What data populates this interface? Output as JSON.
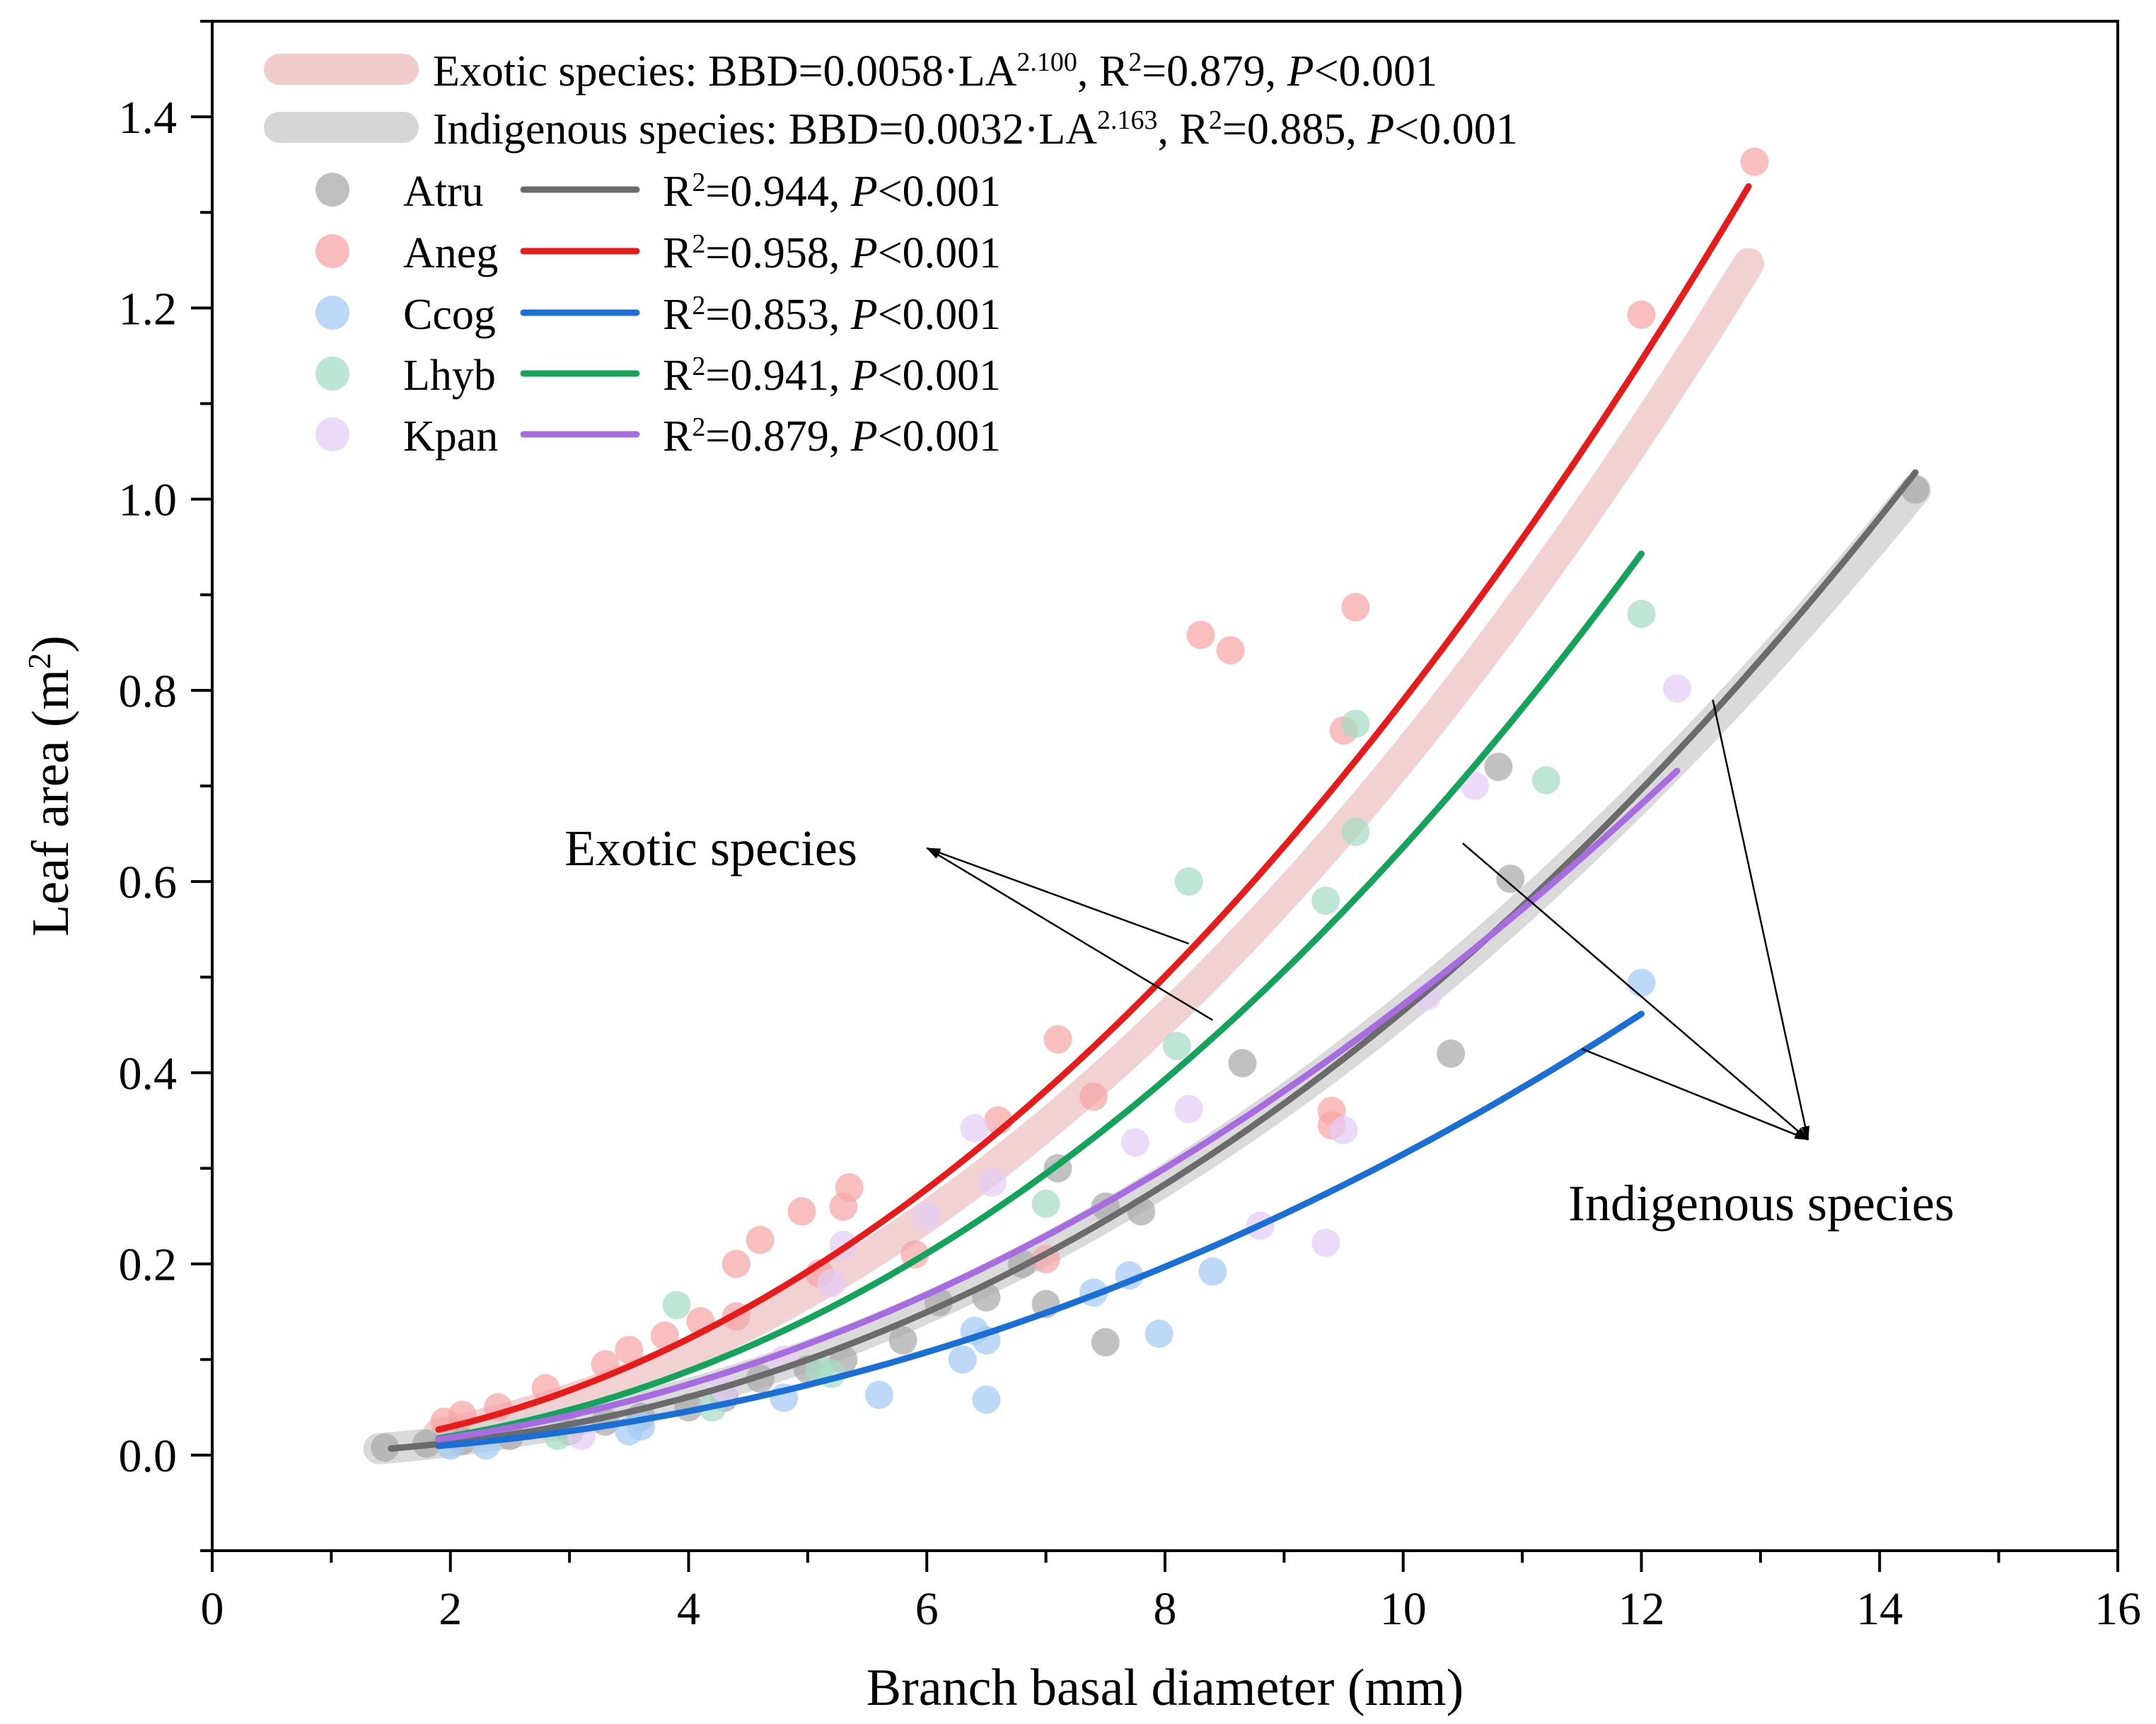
{
  "chart_data": {
    "type": "scatter",
    "xlabel": "Branch basal diameter (mm)",
    "ylabel": "Leaf area (m",
    "ylabel_sup": "2",
    "ylabel_end": ")",
    "xlim": [
      0,
      16
    ],
    "ylim": [
      -0.1,
      1.5
    ],
    "x_ticks": [
      0,
      2,
      4,
      6,
      8,
      10,
      12,
      14,
      16
    ],
    "y_ticks": [
      0.0,
      0.2,
      0.4,
      0.6,
      0.8,
      1.0,
      1.2,
      1.4
    ],
    "x_tick_labels": [
      "0",
      "2",
      "4",
      "6",
      "8",
      "10",
      "12",
      "14",
      "16"
    ],
    "y_tick_labels": [
      "0.0",
      "0.2",
      "0.4",
      "0.6",
      "0.8",
      "1.0",
      "1.2",
      "1.4"
    ],
    "grid": false,
    "group_fits": [
      {
        "name": "Exotic species",
        "color": "#f0cccc",
        "label_pre": "Exotic species: BBD=0.0058·LA",
        "label_exp": "2.100",
        "label_post": ", R",
        "r2_sup": "2",
        "r2_text": "=0.879, ",
        "p_italic": "P",
        "p_text": "<0.001",
        "a": 0.0058,
        "b": 2.1,
        "x_range": [
          1.9,
          12.9
        ]
      },
      {
        "name": "Indigenous species",
        "color": "#d6d6d6",
        "label_pre": "Indigenous species: BBD=0.0032·LA",
        "label_exp": "2.163",
        "label_post": ", R",
        "r2_sup": "2",
        "r2_text": "=0.885, ",
        "p_italic": "P",
        "p_text": "<0.001",
        "a": 0.0032,
        "b": 2.163,
        "x_range": [
          1.4,
          14.3
        ]
      }
    ],
    "series": [
      {
        "name": "Atru",
        "color": "#a9a9a9",
        "line_color": "#6b6b6b",
        "r2_label": "R",
        "r2_sup": "2",
        "r2_text": "=0.944, ",
        "p_italic": "P",
        "p_text": "<0.001",
        "fit": {
          "a": 0.0028,
          "b": 2.22,
          "x_range": [
            1.5,
            14.3
          ]
        },
        "points": [
          [
            1.45,
            0.008
          ],
          [
            1.8,
            0.012
          ],
          [
            2.1,
            0.015
          ],
          [
            2.5,
            0.02
          ],
          [
            3.0,
            0.025
          ],
          [
            3.3,
            0.035
          ],
          [
            3.6,
            0.04
          ],
          [
            4.0,
            0.05
          ],
          [
            4.3,
            0.06
          ],
          [
            4.6,
            0.08
          ],
          [
            5.0,
            0.09
          ],
          [
            5.3,
            0.1
          ],
          [
            5.8,
            0.12
          ],
          [
            6.1,
            0.16
          ],
          [
            6.5,
            0.165
          ],
          [
            6.8,
            0.2
          ],
          [
            7.0,
            0.158
          ],
          [
            7.1,
            0.3
          ],
          [
            7.5,
            0.118
          ],
          [
            7.5,
            0.26
          ],
          [
            7.8,
            0.255
          ],
          [
            8.65,
            0.41
          ],
          [
            10.4,
            0.42
          ],
          [
            10.8,
            0.72
          ],
          [
            10.9,
            0.603
          ],
          [
            14.3,
            1.01
          ]
        ]
      },
      {
        "name": "Aneg",
        "color": "#f7a5a5",
        "line_color": "#e81b1b",
        "r2_label": "R",
        "r2_sup": "2",
        "r2_text": "=0.958, ",
        "p_italic": "P",
        "p_text": "<0.001",
        "fit": {
          "a": 0.0072,
          "b": 2.04,
          "x_range": [
            1.9,
            12.9
          ]
        },
        "points": [
          [
            1.95,
            0.035
          ],
          [
            2.1,
            0.042
          ],
          [
            2.4,
            0.05
          ],
          [
            2.8,
            0.07
          ],
          [
            3.3,
            0.095
          ],
          [
            3.5,
            0.11
          ],
          [
            3.8,
            0.125
          ],
          [
            4.1,
            0.14
          ],
          [
            4.4,
            0.145
          ],
          [
            4.4,
            0.2
          ],
          [
            4.6,
            0.225
          ],
          [
            4.95,
            0.255
          ],
          [
            5.1,
            0.19
          ],
          [
            5.3,
            0.26
          ],
          [
            5.35,
            0.28
          ],
          [
            5.9,
            0.21
          ],
          [
            6.6,
            0.35
          ],
          [
            7.0,
            0.205
          ],
          [
            7.1,
            0.435
          ],
          [
            7.4,
            0.375
          ],
          [
            8.3,
            0.858
          ],
          [
            8.55,
            0.842
          ],
          [
            9.4,
            0.36
          ],
          [
            9.4,
            0.345
          ],
          [
            9.5,
            0.758
          ],
          [
            9.6,
            0.887
          ],
          [
            12.0,
            1.193
          ],
          [
            12.95,
            1.353
          ]
        ]
      },
      {
        "name": "Ccog",
        "color": "#a4cbf4",
        "line_color": "#1a6fd6",
        "r2_label": "R",
        "r2_sup": "2",
        "r2_text": "=0.853, ",
        "p_italic": "P",
        "p_text": "<0.001",
        "fit": {
          "a": 0.0025,
          "b": 2.1,
          "x_range": [
            1.9,
            12.0
          ]
        },
        "points": [
          [
            2.0,
            0.01
          ],
          [
            2.3,
            0.01
          ],
          [
            3.5,
            0.025
          ],
          [
            3.6,
            0.03
          ],
          [
            4.8,
            0.06
          ],
          [
            5.6,
            0.063
          ],
          [
            6.3,
            0.1
          ],
          [
            6.4,
            0.13
          ],
          [
            6.5,
            0.12
          ],
          [
            6.5,
            0.058
          ],
          [
            7.4,
            0.17
          ],
          [
            7.7,
            0.188
          ],
          [
            7.95,
            0.127
          ],
          [
            8.4,
            0.192
          ],
          [
            12.0,
            0.494
          ]
        ]
      },
      {
        "name": "Lhyb",
        "color": "#a6dcc4",
        "line_color": "#13a35a",
        "r2_label": "R",
        "r2_sup": "2",
        "r2_text": "=0.941, ",
        "p_italic": "P",
        "p_text": "<0.001",
        "fit": {
          "a": 0.0044,
          "b": 2.16,
          "x_range": [
            1.9,
            12.0
          ]
        },
        "points": [
          [
            2.9,
            0.02
          ],
          [
            3.9,
            0.157
          ],
          [
            4.2,
            0.05
          ],
          [
            5.1,
            0.09
          ],
          [
            5.2,
            0.085
          ],
          [
            7.0,
            0.263
          ],
          [
            8.1,
            0.428
          ],
          [
            8.2,
            0.6
          ],
          [
            9.35,
            0.58
          ],
          [
            9.6,
            0.652
          ],
          [
            9.6,
            0.765
          ],
          [
            11.2,
            0.706
          ],
          [
            12.0,
            0.88
          ]
        ]
      },
      {
        "name": "Kpan",
        "color": "#e4cdf5",
        "line_color": "#a76de0",
        "r2_label": "R",
        "r2_sup": "2",
        "r2_text": "=0.879, ",
        "p_italic": "P",
        "p_text": "<0.001",
        "fit": {
          "a": 0.0045,
          "b": 2.02,
          "x_range": [
            1.9,
            12.3
          ]
        },
        "points": [
          [
            3.1,
            0.02
          ],
          [
            4.3,
            0.07
          ],
          [
            4.8,
            0.1
          ],
          [
            5.2,
            0.18
          ],
          [
            5.3,
            0.22
          ],
          [
            6.0,
            0.25
          ],
          [
            6.4,
            0.342
          ],
          [
            6.55,
            0.285
          ],
          [
            7.75,
            0.327
          ],
          [
            8.2,
            0.362
          ],
          [
            8.8,
            0.24
          ],
          [
            9.35,
            0.222
          ],
          [
            9.5,
            0.34
          ],
          [
            10.2,
            0.48
          ],
          [
            10.6,
            0.7
          ],
          [
            12.3,
            0.802
          ]
        ]
      }
    ],
    "annotations": [
      {
        "text": "Exotic species",
        "anchor_x": 6.0,
        "anchor_y": 0.635,
        "targets": [
          [
            8.2,
            0.535
          ],
          [
            8.4,
            0.455
          ]
        ]
      },
      {
        "text": "Indigenous species",
        "anchor_x": 13.4,
        "anchor_y": 0.33,
        "targets": [
          [
            10.5,
            0.64
          ],
          [
            11.5,
            0.425
          ],
          [
            12.6,
            0.79
          ]
        ]
      }
    ]
  }
}
